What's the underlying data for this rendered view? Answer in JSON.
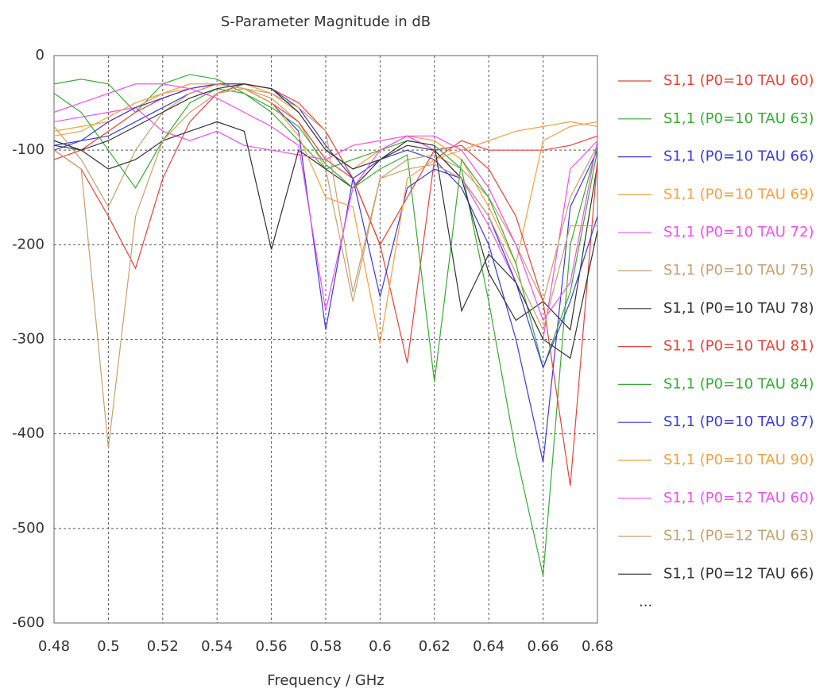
{
  "chart_data": {
    "type": "line",
    "title": "S-Parameter Magnitude in dB",
    "x_label": "Frequency / GHz",
    "x": [
      0.48,
      0.49,
      0.5,
      0.51,
      0.52,
      0.53,
      0.54,
      0.55,
      0.56,
      0.57,
      0.58,
      0.59,
      0.6,
      0.61,
      0.62,
      0.63,
      0.64,
      0.65,
      0.66,
      0.67,
      0.68
    ],
    "xlim": [
      0.48,
      0.68
    ],
    "xticks": [
      0.48,
      0.5,
      0.52,
      0.54,
      0.56,
      0.58,
      0.6,
      0.62,
      0.64,
      0.66,
      0.68
    ],
    "ylim": [
      -600,
      0
    ],
    "yticks": [
      0,
      -100,
      -200,
      -300,
      -400,
      -500,
      -600
    ],
    "grid": true,
    "legend_position": "right",
    "legend_more": "...",
    "series": [
      {
        "name": "S1,1 (P0=10 TAU 60)",
        "color": "#e8413c",
        "values": [
          -100,
          -120,
          -170,
          -225,
          -130,
          -70,
          -40,
          -30,
          -35,
          -50,
          -80,
          -130,
          -200,
          -325,
          -110,
          -90,
          -100,
          -100,
          -100,
          -95,
          -85
        ]
      },
      {
        "name": "S1,1 (P0=10 TAU 63)",
        "color": "#3aaa35",
        "values": [
          -30,
          -25,
          -30,
          -60,
          -30,
          -20,
          -25,
          -40,
          -60,
          -90,
          -120,
          -110,
          -100,
          -90,
          -95,
          -120,
          -260,
          -420,
          -550,
          -200,
          -95
        ]
      },
      {
        "name": "S1,1 (P0=10 TAU 66)",
        "color": "#3b3bdf",
        "values": [
          -95,
          -90,
          -85,
          -70,
          -55,
          -40,
          -30,
          -35,
          -50,
          -80,
          -290,
          -130,
          -110,
          -100,
          -110,
          -140,
          -200,
          -300,
          -430,
          -160,
          -100
        ]
      },
      {
        "name": "S1,1 (P0=10 TAU 69)",
        "color": "#f5a040",
        "values": [
          -80,
          -75,
          -70,
          -55,
          -40,
          -35,
          -30,
          -30,
          -40,
          -60,
          -100,
          -120,
          -100,
          -85,
          -90,
          -110,
          -160,
          -220,
          -90,
          -75,
          -70
        ]
      },
      {
        "name": "S1,1 (P0=10 TAU 72)",
        "color": "#f050f0",
        "values": [
          -70,
          -65,
          -60,
          -55,
          -80,
          -90,
          -80,
          -95,
          -100,
          -105,
          -110,
          -95,
          -90,
          -85,
          -100,
          -130,
          -180,
          -240,
          -300,
          -120,
          -90
        ]
      },
      {
        "name": "S1,1 (P0=10 TAU 75)",
        "color": "#c8a070",
        "values": [
          -75,
          -110,
          -160,
          -100,
          -60,
          -40,
          -30,
          -35,
          -45,
          -70,
          -120,
          -260,
          -130,
          -110,
          -105,
          -120,
          -150,
          -200,
          -260,
          -150,
          -95
        ]
      },
      {
        "name": "S1,1 (P0=10 TAU 78)",
        "color": "#333333",
        "values": [
          -90,
          -100,
          -120,
          -110,
          -90,
          -80,
          -70,
          -80,
          -205,
          -100,
          -120,
          -140,
          -110,
          -95,
          -100,
          -130,
          -230,
          -280,
          -260,
          -290,
          -115
        ]
      },
      {
        "name": "S1,1 (P0=10 TAU 81)",
        "color": "#e8413c",
        "values": [
          -110,
          -100,
          -80,
          -60,
          -45,
          -35,
          -30,
          -35,
          -50,
          -70,
          -110,
          -130,
          -200,
          -150,
          -100,
          -95,
          -120,
          -170,
          -260,
          -455,
          -110
        ]
      },
      {
        "name": "S1,1 (P0=10 TAU 84)",
        "color": "#3aaa35",
        "values": [
          -40,
          -60,
          -100,
          -140,
          -90,
          -50,
          -35,
          -40,
          -55,
          -75,
          -115,
          -140,
          -120,
          -105,
          -345,
          -110,
          -150,
          -220,
          -330,
          -250,
          -100
        ]
      },
      {
        "name": "S1,1 (P0=10 TAU 87)",
        "color": "#3b3bdf",
        "values": [
          -100,
          -90,
          -70,
          -55,
          -45,
          -35,
          -30,
          -30,
          -35,
          -55,
          -95,
          -130,
          -255,
          -140,
          -120,
          -130,
          -170,
          -240,
          -330,
          -260,
          -170
        ]
      },
      {
        "name": "S1,1 (P0=10 TAU 90)",
        "color": "#f5a040",
        "values": [
          -85,
          -80,
          -65,
          -50,
          -40,
          -30,
          -30,
          -35,
          -50,
          -85,
          -150,
          -160,
          -305,
          -130,
          -110,
          -100,
          -90,
          -80,
          -75,
          -70,
          -75
        ]
      },
      {
        "name": "S1,1 (P0=12 TAU 60)",
        "color": "#f050f0",
        "values": [
          -60,
          -50,
          -40,
          -30,
          -30,
          -35,
          -45,
          -60,
          -75,
          -95,
          -270,
          -140,
          -100,
          -85,
          -85,
          -100,
          -140,
          -200,
          -280,
          -240,
          -90
        ]
      },
      {
        "name": "S1,1 (P0=12 TAU 63)",
        "color": "#c8a070",
        "values": [
          -100,
          -120,
          -415,
          -170,
          -90,
          -60,
          -40,
          -35,
          -40,
          -55,
          -80,
          -250,
          -130,
          -120,
          -115,
          -130,
          -170,
          -230,
          -290,
          -180,
          -180
        ]
      },
      {
        "name": "S1,1 (P0=12 TAU 66)",
        "color": "#333333",
        "values": [
          -95,
          -100,
          -90,
          -75,
          -60,
          -45,
          -35,
          -30,
          -35,
          -60,
          -100,
          -120,
          -110,
          -90,
          -95,
          -270,
          -210,
          -240,
          -300,
          -320,
          -185
        ]
      }
    ]
  }
}
